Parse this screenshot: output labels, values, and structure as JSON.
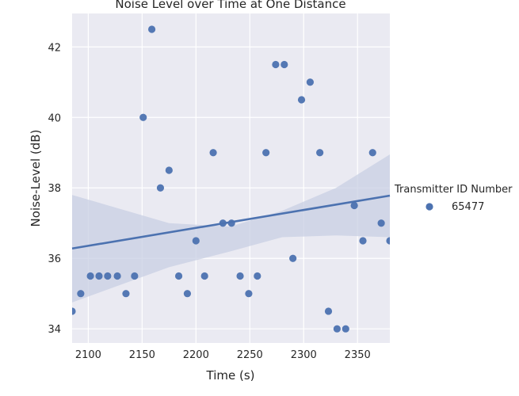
{
  "chart_data": {
    "type": "scatter",
    "title": "Noise Level over Time at One Distance",
    "xlabel": "Time (s)",
    "ylabel": "Noise-Level (dB)",
    "xlim": [
      2085,
      2380
    ],
    "ylim": [
      33.6,
      42.95
    ],
    "xticks": [
      2100,
      2150,
      2200,
      2250,
      2300,
      2350
    ],
    "yticks": [
      34,
      36,
      38,
      40,
      42
    ],
    "grid": true,
    "legend": {
      "title": "Transmitter ID Number",
      "position": "right",
      "entries": [
        "65477"
      ]
    },
    "colors": {
      "background": "#eaeaf2",
      "grid": "#ffffff",
      "series": "#4c72b0",
      "band": "#c8cfe3"
    },
    "series": [
      {
        "name": "65477",
        "x": [
          2085,
          2093,
          2102,
          2110,
          2118,
          2127,
          2135,
          2143,
          2151,
          2159,
          2167,
          2175,
          2184,
          2192,
          2200,
          2208,
          2216,
          2225,
          2233,
          2241,
          2249,
          2257,
          2265,
          2274,
          2282,
          2290,
          2298,
          2306,
          2315,
          2323,
          2331,
          2339,
          2347,
          2355,
          2364,
          2372,
          2380
        ],
        "y": [
          34.5,
          35.0,
          35.5,
          35.5,
          35.5,
          35.5,
          35.0,
          35.5,
          40.0,
          42.5,
          38.0,
          38.5,
          35.5,
          35.0,
          36.5,
          35.5,
          39.0,
          37.0,
          37.0,
          35.5,
          35.0,
          35.5,
          39.0,
          41.5,
          41.5,
          36.0,
          40.5,
          41.0,
          39.0,
          34.5,
          34.0,
          34.0,
          37.5,
          36.5,
          39.0,
          37.0,
          36.5
        ]
      }
    ],
    "regression": {
      "x": [
        2085,
        2380
      ],
      "y": [
        36.28,
        37.78
      ],
      "ci_upper": [
        37.8,
        37.0,
        36.9,
        37.35,
        38.0,
        38.95
      ],
      "ci_lower": [
        34.75,
        35.75,
        36.2,
        36.6,
        36.65,
        36.6
      ],
      "ci_x": [
        2085,
        2175,
        2232,
        2280,
        2330,
        2380
      ]
    }
  }
}
